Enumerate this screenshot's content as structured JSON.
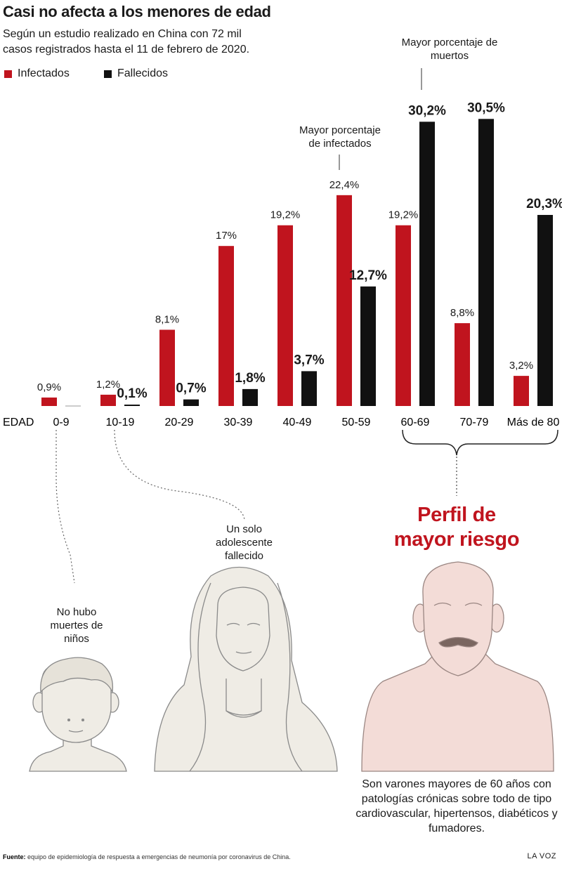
{
  "title": "Casi no afecta a los menores de edad",
  "subtitle": "Según un estudio realizado en China con 72 mil casos registrados hasta el 11 de febrero de 2020.",
  "colors": {
    "infected": "#c0141e",
    "deceased": "#111111",
    "figure_light": "#efece5",
    "figure_pink": "#f3dcd7"
  },
  "legend": [
    {
      "name": "Infectados",
      "color": "#c0141e"
    },
    {
      "name": "Fallecidos",
      "color": "#111111"
    }
  ],
  "chart_data": {
    "type": "bar",
    "xlabel": "EDAD",
    "categories": [
      "0-9",
      "10-19",
      "20-29",
      "30-39",
      "40-49",
      "50-59",
      "60-69",
      "70-79",
      "Más de 80"
    ],
    "series": [
      {
        "name": "Infectados",
        "values": [
          0.9,
          1.2,
          8.1,
          17,
          19.2,
          22.4,
          19.2,
          8.8,
          3.2
        ],
        "labels": [
          "0,9%",
          "1,2%",
          "8,1%",
          "17%",
          "19,2%",
          "22,4%",
          "19,2%",
          "8,8%",
          "3,2%"
        ]
      },
      {
        "name": "Fallecidos",
        "values": [
          0,
          0.1,
          0.7,
          1.8,
          3.7,
          12.7,
          30.2,
          30.5,
          20.3
        ],
        "labels": [
          "",
          "0,1%",
          "0,7%",
          "1,8%",
          "3,7%",
          "12,7%",
          "30,2%",
          "30,5%",
          "20,3%"
        ]
      }
    ],
    "ylim": [
      0,
      32
    ],
    "annotations": [
      "Mayor porcentaje de infectados",
      "Mayor porcentaje de muertos"
    ]
  },
  "annotations": {
    "infected_max": "Mayor porcentaje de infectados",
    "deaths_max": "Mayor porcentaje de muertos"
  },
  "notes": {
    "children": "No hubo muertes de niños",
    "teen": "Un solo adolescente fallecido",
    "risk_title": "Perfil de mayor riesgo",
    "risk_desc": "Son varones mayores de 60 años con patologías crónicas sobre todo de tipo cardiovascular, hipertensos, diabéticos y fumadores."
  },
  "source_label": "Fuente:",
  "source_text": "equipo de epidemiología de respuesta a emergencias de neumonía por coronavirus de China.",
  "brand": "LA VOZ"
}
